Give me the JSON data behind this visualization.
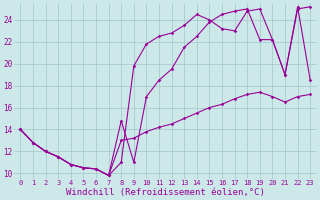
{
  "background_color": "#cce8e8",
  "grid_color": "#aacccc",
  "line_color": "#990099",
  "xlim": [
    -0.5,
    23.5
  ],
  "ylim": [
    9.5,
    25.5
  ],
  "xlabel": "Windchill (Refroidissement éolien,°C)",
  "xlabel_fontsize": 6.5,
  "xtick_fontsize": 5,
  "ytick_fontsize": 5.5,
  "xticks": [
    0,
    1,
    2,
    3,
    4,
    5,
    6,
    7,
    8,
    9,
    10,
    11,
    12,
    13,
    14,
    15,
    16,
    17,
    18,
    19,
    20,
    21,
    22,
    23
  ],
  "ytick_labels": [
    "10",
    "12",
    "14",
    "16",
    "18",
    "20",
    "22",
    "24"
  ],
  "yticks": [
    10,
    12,
    14,
    16,
    18,
    20,
    22,
    24
  ],
  "series1_x": [
    0,
    1,
    2,
    3,
    4,
    5,
    6,
    7,
    8,
    9,
    10,
    11,
    12,
    13,
    14,
    15,
    16,
    17,
    18,
    19,
    20,
    21,
    22,
    23
  ],
  "series1_y": [
    14.0,
    12.8,
    12.0,
    11.5,
    10.8,
    10.5,
    10.4,
    9.8,
    13.0,
    13.2,
    13.8,
    14.2,
    14.5,
    15.0,
    15.5,
    16.0,
    16.3,
    16.8,
    17.2,
    17.4,
    17.0,
    16.5,
    17.0,
    17.2
  ],
  "series2_x": [
    0,
    1,
    2,
    3,
    4,
    5,
    6,
    7,
    8,
    9,
    10,
    11,
    12,
    13,
    14,
    15,
    16,
    17,
    18,
    19,
    20,
    21,
    22,
    23
  ],
  "series2_y": [
    14.0,
    12.8,
    12.0,
    11.5,
    10.8,
    10.5,
    10.4,
    9.8,
    11.0,
    19.8,
    21.8,
    22.5,
    22.8,
    23.5,
    24.5,
    24.0,
    23.2,
    23.0,
    24.8,
    25.0,
    22.2,
    19.0,
    25.0,
    25.2
  ],
  "series3_x": [
    0,
    1,
    2,
    3,
    4,
    5,
    6,
    7,
    8,
    9,
    10,
    11,
    12,
    13,
    14,
    15,
    16,
    17,
    18,
    19,
    20,
    21,
    22,
    23
  ],
  "series3_y": [
    14.0,
    12.8,
    12.0,
    11.5,
    10.8,
    10.5,
    10.4,
    9.8,
    14.8,
    11.0,
    17.0,
    18.5,
    19.5,
    21.5,
    22.5,
    23.8,
    24.5,
    24.8,
    25.0,
    22.2,
    22.2,
    19.0,
    25.2,
    18.5
  ]
}
